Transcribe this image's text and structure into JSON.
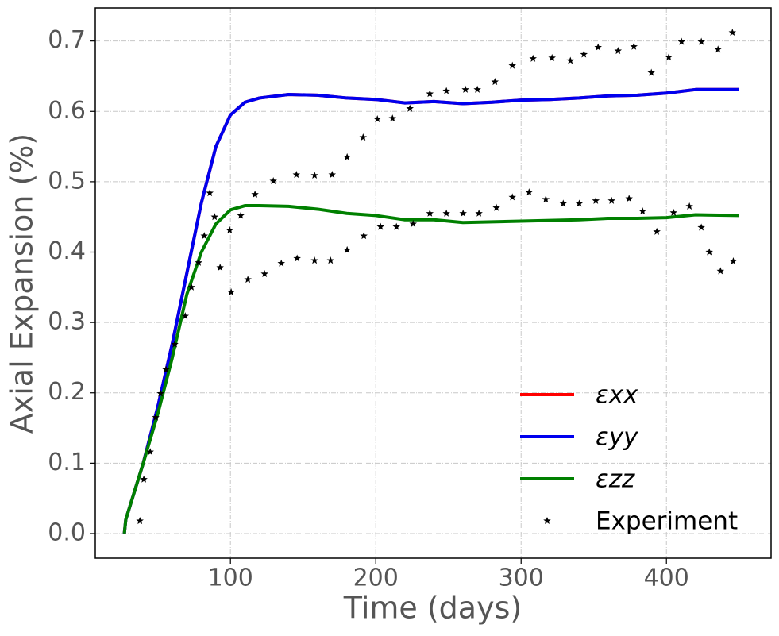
{
  "chart_data": {
    "type": "line",
    "xlabel": "Time (days)",
    "ylabel": "Axial Expansion (%)",
    "xlim": [
      7,
      472
    ],
    "ylim": [
      -0.035,
      0.747
    ],
    "xticks": [
      100,
      200,
      300,
      400
    ],
    "yticks": [
      {
        "value": 0,
        "label": "0.0"
      },
      0.1,
      0.2,
      0.3,
      0.4,
      0.5,
      0.6,
      0.7
    ],
    "grid": true,
    "legend": "lower right",
    "x": [
      27,
      28,
      40,
      50,
      60,
      70,
      80,
      90,
      100,
      110,
      120,
      140,
      160,
      180,
      200,
      220,
      240,
      260,
      280,
      300,
      320,
      340,
      360,
      380,
      400,
      420,
      450
    ],
    "series": [
      {
        "name": "εxx",
        "color": "#ff0000",
        "values": [
          0.0,
          0.02,
          0.1,
          0.18,
          0.27,
          0.37,
          0.47,
          0.55,
          0.595,
          0.613,
          0.619,
          0.624,
          0.623,
          0.619,
          0.617,
          0.612,
          0.614,
          0.611,
          0.613,
          0.616,
          0.617,
          0.619,
          0.622,
          0.623,
          0.626,
          0.631,
          0.631
        ]
      },
      {
        "name": "εyy",
        "color": "#0000ee",
        "values": [
          0.0,
          0.02,
          0.1,
          0.18,
          0.27,
          0.37,
          0.47,
          0.55,
          0.595,
          0.613,
          0.619,
          0.624,
          0.623,
          0.619,
          0.617,
          0.612,
          0.614,
          0.611,
          0.613,
          0.616,
          0.617,
          0.619,
          0.622,
          0.623,
          0.626,
          0.631,
          0.631
        ]
      },
      {
        "name": "εzz",
        "color": "#008000",
        "values": [
          0.0,
          0.02,
          0.1,
          0.17,
          0.25,
          0.34,
          0.4,
          0.44,
          0.46,
          0.466,
          0.466,
          0.465,
          0.461,
          0.455,
          0.452,
          0.446,
          0.446,
          0.442,
          0.443,
          0.444,
          0.445,
          0.446,
          0.448,
          0.448,
          0.449,
          0.453,
          0.452
        ]
      },
      {
        "name": "Experiment",
        "color": "#000000",
        "marker": "*",
        "x": [
          37.7,
          40.4,
          44.8,
          48.6,
          51.9,
          55.7,
          61.7,
          68.9,
          73.2,
          78.1,
          82.0,
          85.8,
          89.1,
          92.9,
          99.5,
          100.5,
          107.1,
          112.0,
          116.9,
          123.5,
          129.5,
          135.0,
          145.4,
          145.9,
          157.9,
          157.9,
          170.0,
          168.9,
          180.3,
          180.3,
          191.3,
          191.8,
          201.1,
          203.3,
          211.5,
          214.2,
          223.5,
          225.7,
          237.2,
          237.2,
          248.6,
          248.6,
          261.7,
          260.1,
          269.9,
          271.0,
          282.0,
          283.0,
          294.0,
          294.0,
          305.5,
          308.2,
          317.0,
          321.3,
          329.0,
          333.9,
          340.0,
          343.2,
          351.4,
          353.0,
          362.3,
          366.7,
          374.3,
          377.6,
          383.6,
          389.6,
          393.4,
          401.6,
          404.9,
          410.4,
          415.8,
          424.0,
          424.0,
          429.5,
          435.5,
          437.2,
          445.4,
          446.0
        ],
        "values": [
          0.018,
          0.077,
          0.116,
          0.165,
          0.199,
          0.233,
          0.269,
          0.309,
          0.35,
          0.385,
          0.423,
          0.484,
          0.45,
          0.378,
          0.431,
          0.343,
          0.452,
          0.361,
          0.482,
          0.369,
          0.501,
          0.384,
          0.51,
          0.391,
          0.509,
          0.388,
          0.51,
          0.388,
          0.535,
          0.403,
          0.563,
          0.423,
          0.589,
          0.436,
          0.59,
          0.436,
          0.604,
          0.44,
          0.625,
          0.455,
          0.629,
          0.455,
          0.631,
          0.455,
          0.631,
          0.455,
          0.642,
          0.463,
          0.665,
          0.478,
          0.485,
          0.675,
          0.475,
          0.676,
          0.469,
          0.672,
          0.469,
          0.681,
          0.473,
          0.691,
          0.473,
          0.686,
          0.476,
          0.692,
          0.458,
          0.655,
          0.429,
          0.677,
          0.456,
          0.699,
          0.465,
          0.699,
          0.435,
          0.4,
          0.688,
          0.373,
          0.712,
          0.387
        ]
      }
    ]
  }
}
